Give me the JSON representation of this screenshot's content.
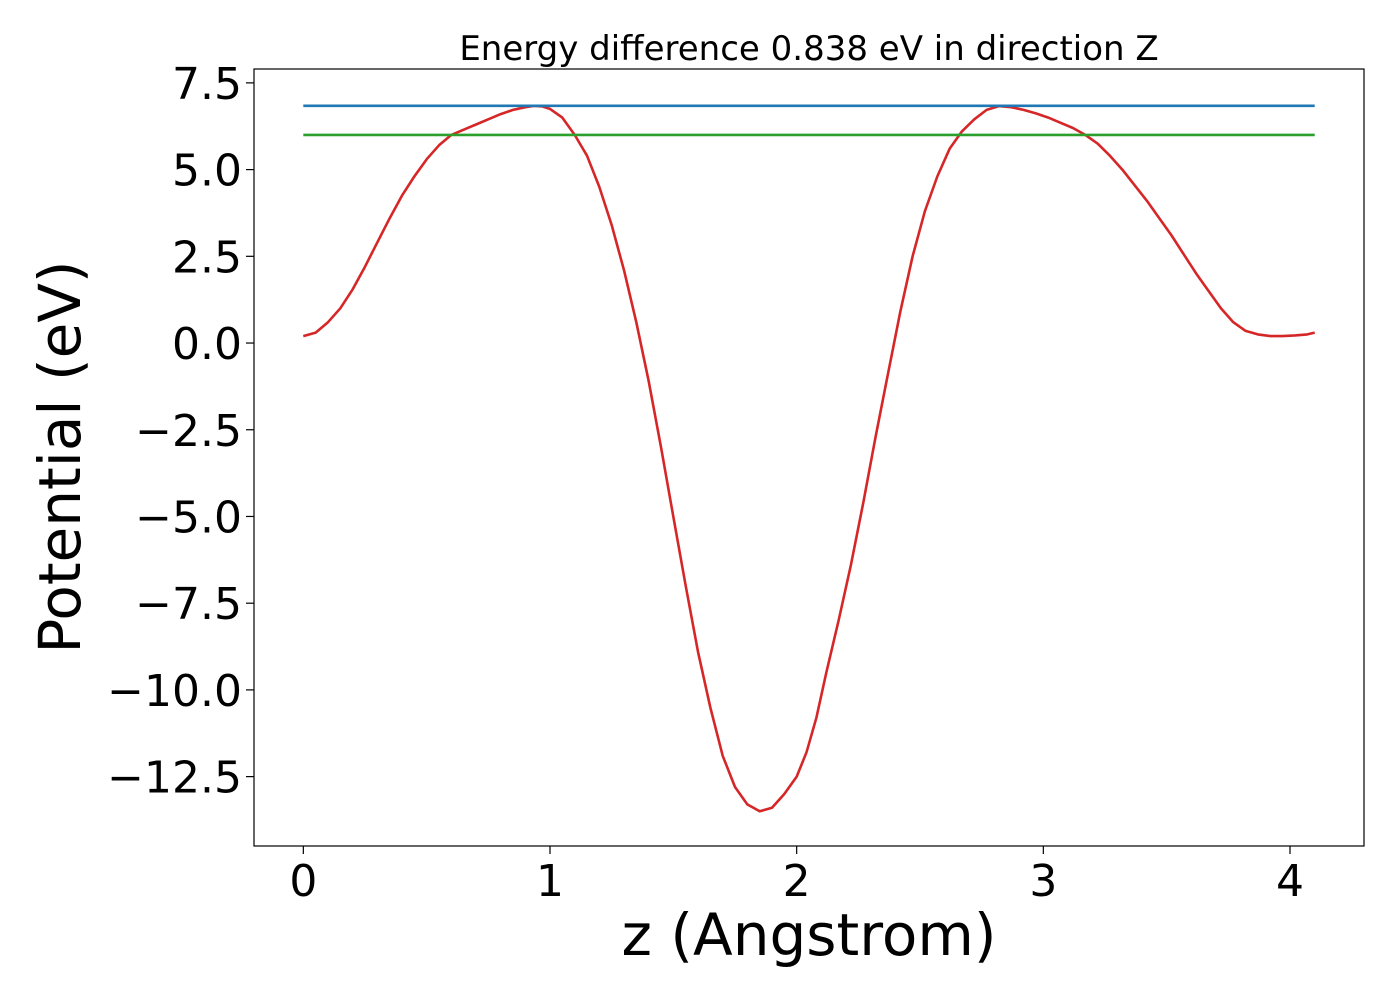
{
  "chart_data": {
    "type": "line",
    "title": "Energy difference 0.838 eV in direction Z",
    "xlabel": "z (Angstrom)",
    "ylabel": "Potential (eV)",
    "xlim": [
      -0.2,
      4.3
    ],
    "ylim": [
      -14.5,
      7.9
    ],
    "xticks": [
      0,
      1,
      2,
      3,
      4
    ],
    "xtick_labels": [
      "0",
      "1",
      "2",
      "3",
      "4"
    ],
    "yticks": [
      7.5,
      5.0,
      2.5,
      0.0,
      -2.5,
      -5.0,
      -7.5,
      -10.0,
      -12.5
    ],
    "ytick_labels": [
      "7.5",
      "5.0",
      "2.5",
      "0.0",
      "−2.5",
      "−5.0",
      "−7.5",
      "−10.0",
      "−12.5"
    ],
    "grid": false,
    "series": [
      {
        "color": "#d62728",
        "x": [
          0.0,
          0.05,
          0.1,
          0.15,
          0.2,
          0.25,
          0.3,
          0.35,
          0.4,
          0.45,
          0.5,
          0.55,
          0.6,
          0.65,
          0.7,
          0.75,
          0.8,
          0.85,
          0.9,
          0.935,
          0.97,
          1.0,
          1.05,
          1.1,
          1.15,
          1.2,
          1.25,
          1.3,
          1.35,
          1.4,
          1.45,
          1.5,
          1.55,
          1.6,
          1.65,
          1.7,
          1.75,
          1.8,
          1.85,
          1.9,
          1.95,
          2.0,
          2.04,
          2.08,
          2.12,
          2.17,
          2.22,
          2.27,
          2.32,
          2.37,
          2.42,
          2.47,
          2.52,
          2.57,
          2.62,
          2.67,
          2.72,
          2.77,
          2.82,
          2.87,
          2.92,
          2.97,
          3.02,
          3.07,
          3.12,
          3.17,
          3.22,
          3.27,
          3.32,
          3.37,
          3.42,
          3.47,
          3.52,
          3.57,
          3.62,
          3.67,
          3.72,
          3.77,
          3.82,
          3.87,
          3.92,
          3.97,
          4.02,
          4.07,
          4.1
        ],
        "y": [
          0.2,
          0.3,
          0.6,
          1.0,
          1.55,
          2.2,
          2.9,
          3.6,
          4.25,
          4.8,
          5.3,
          5.7,
          6.0,
          6.15,
          6.3,
          6.45,
          6.6,
          6.72,
          6.8,
          6.84,
          6.82,
          6.75,
          6.5,
          6.0,
          5.4,
          4.5,
          3.4,
          2.1,
          0.6,
          -1.1,
          -3.0,
          -5.0,
          -7.0,
          -8.9,
          -10.5,
          -11.9,
          -12.8,
          -13.3,
          -13.5,
          -13.4,
          -13.0,
          -12.5,
          -11.8,
          -10.8,
          -9.5,
          -8.0,
          -6.4,
          -4.6,
          -2.7,
          -0.9,
          0.9,
          2.5,
          3.8,
          4.8,
          5.6,
          6.1,
          6.45,
          6.72,
          6.83,
          6.8,
          6.72,
          6.62,
          6.5,
          6.35,
          6.2,
          6.0,
          5.75,
          5.4,
          5.0,
          4.55,
          4.1,
          3.6,
          3.1,
          2.55,
          2.0,
          1.5,
          1.0,
          0.6,
          0.35,
          0.25,
          0.2,
          0.2,
          0.22,
          0.25,
          0.3
        ]
      },
      {
        "color": "#1f77b4",
        "x": [
          0.0,
          4.1
        ],
        "y": [
          6.84,
          6.84
        ]
      },
      {
        "color": "#2ca02c",
        "x": [
          0.0,
          4.1
        ],
        "y": [
          6.0,
          6.0
        ]
      }
    ]
  }
}
